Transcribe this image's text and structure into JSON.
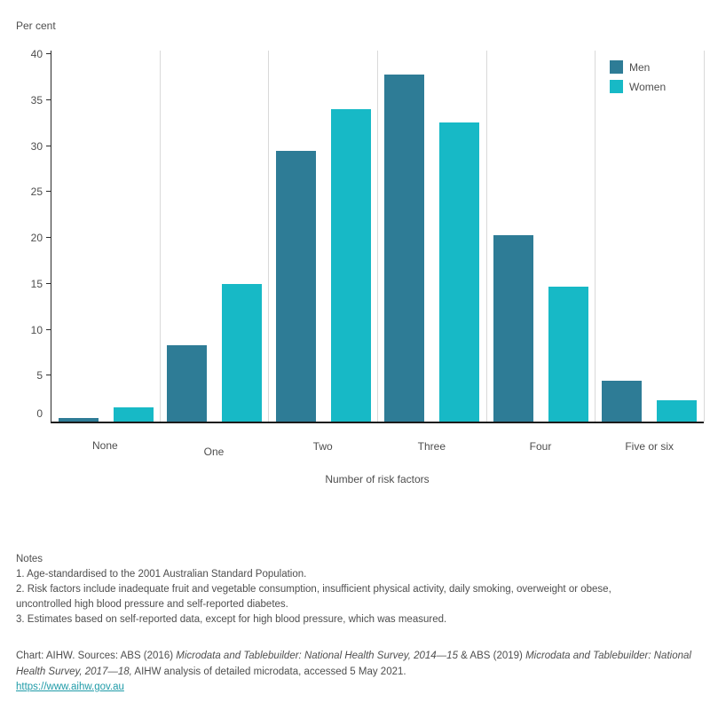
{
  "chart_data": {
    "type": "bar",
    "title": "",
    "ylabel": "Per cent",
    "xlabel": "Number of risk factors",
    "categories": [
      "None",
      "One",
      "Two",
      "Three",
      "Four",
      "Five or six"
    ],
    "series": [
      {
        "name": "Men",
        "color": "#2e7c96",
        "values": [
          0.4,
          8.3,
          29.5,
          37.8,
          20.3,
          4.4
        ]
      },
      {
        "name": "Women",
        "color": "#17b9c6",
        "values": [
          1.5,
          15.0,
          34.0,
          32.6,
          14.7,
          2.3
        ]
      }
    ],
    "ylim": [
      0,
      40.6
    ],
    "yticks": [
      0,
      5,
      10,
      15,
      20,
      25,
      30,
      35,
      40
    ],
    "grid": "vertical-separators-only",
    "legend_position": "top-right"
  },
  "colors": {
    "men": "#2e7c96",
    "women": "#17b9c6",
    "gridline": "#d9d9d9",
    "axis_text": "#4e4e4e",
    "link": "#1f9ba8"
  },
  "notes": {
    "title": "Notes",
    "items": [
      "1. Age-standardised to the 2001 Australian Standard Population.",
      "2. Risk factors include inadequate fruit and vegetable consumption, insufficient physical activity, daily smoking, overweight or obese, uncontrolled high blood pressure and self-reported diabetes.",
      "3. Estimates based on self-reported data, except for high blood pressure, which was measured."
    ]
  },
  "source": {
    "parts": [
      {
        "text": "Chart: AIHW. Sources: ABS (2016) ",
        "italic": false
      },
      {
        "text": "Microdata and Tablebuilder: National Health Survey, 2014—15",
        "italic": true
      },
      {
        "text": " & ABS (2019) ",
        "italic": false
      },
      {
        "text": "Microdata and Tablebuilder: National Health Survey, 2017—18,",
        "italic": true
      },
      {
        "text": " AIHW analysis of detailed microdata, accessed 5 May 2021.",
        "italic": false
      }
    ],
    "link": "https://www.aihw.gov.au"
  }
}
